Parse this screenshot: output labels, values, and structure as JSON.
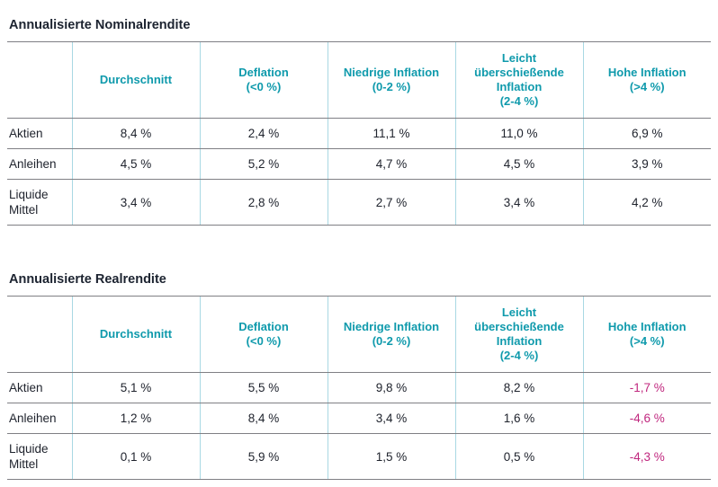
{
  "colors": {
    "header_text": "#0f9aac",
    "title_text": "#1c2330",
    "negative_value": "#c0277e",
    "grid_vertical": "#a9d8e3",
    "grid_horizontal": "#7f7f84"
  },
  "tables": [
    {
      "title": "Annualisierte Nominalrendite",
      "columns": [
        "Durchschnitt",
        "Deflation\n(<0 %)",
        "Niedrige Inflation\n(0-2 %)",
        "Leicht\nüberschießende\nInflation\n(2-4 %)",
        "Hohe Inflation\n(>4 %)"
      ],
      "rows": [
        {
          "label": "Aktien",
          "values": [
            "8,4 %",
            "2,4 %",
            "11,1 %",
            "11,0 %",
            "6,9 %"
          ]
        },
        {
          "label": "Anleihen",
          "values": [
            "4,5 %",
            "5,2 %",
            "4,7 %",
            "4,5 %",
            "3,9 %"
          ]
        },
        {
          "label": "Liquide Mittel",
          "values": [
            "3,4 %",
            "2,8 %",
            "2,7 %",
            "3,4 %",
            "4,2 %"
          ]
        }
      ]
    },
    {
      "title": "Annualisierte Realrendite",
      "columns": [
        "Durchschnitt",
        "Deflation\n(<0 %)",
        "Niedrige Inflation\n(0-2 %)",
        "Leicht\nüberschießende\nInflation\n(2-4 %)",
        "Hohe Inflation\n(>4 %)"
      ],
      "rows": [
        {
          "label": "Aktien",
          "values": [
            "5,1 %",
            "5,5 %",
            "9,8 %",
            "8,2 %",
            "-1,7 %"
          ]
        },
        {
          "label": "Anleihen",
          "values": [
            "1,2 %",
            "8,4 %",
            "3,4 %",
            "1,6 %",
            "-4,6 %"
          ]
        },
        {
          "label": "Liquide Mittel",
          "values": [
            "0,1 %",
            "5,9 %",
            "1,5 %",
            "0,5 %",
            "-4,3 %"
          ]
        }
      ]
    }
  ],
  "chart_data": [
    {
      "type": "table",
      "title": "Annualisierte Nominalrendite",
      "row_header": [
        "Aktien",
        "Anleihen",
        "Liquide Mittel"
      ],
      "columns": [
        "Durchschnitt",
        "Deflation (<0 %)",
        "Niedrige Inflation (0-2 %)",
        "Leicht überschießende Inflation (2-4 %)",
        "Hohe Inflation (>4 %)"
      ],
      "values_percent": [
        [
          8.4,
          2.4,
          11.1,
          11.0,
          6.9
        ],
        [
          4.5,
          5.2,
          4.7,
          4.5,
          3.9
        ],
        [
          3.4,
          2.8,
          2.7,
          3.4,
          4.2
        ]
      ]
    },
    {
      "type": "table",
      "title": "Annualisierte Realrendite",
      "row_header": [
        "Aktien",
        "Anleihen",
        "Liquide Mittel"
      ],
      "columns": [
        "Durchschnitt",
        "Deflation (<0 %)",
        "Niedrige Inflation (0-2 %)",
        "Leicht überschießende Inflation (2-4 %)",
        "Hohe Inflation (>4 %)"
      ],
      "values_percent": [
        [
          5.1,
          5.5,
          9.8,
          8.2,
          -1.7
        ],
        [
          1.2,
          8.4,
          3.4,
          1.6,
          -4.6
        ],
        [
          0.1,
          5.9,
          1.5,
          0.5,
          -4.3
        ]
      ],
      "negative_values_color": "#c0277e"
    }
  ]
}
